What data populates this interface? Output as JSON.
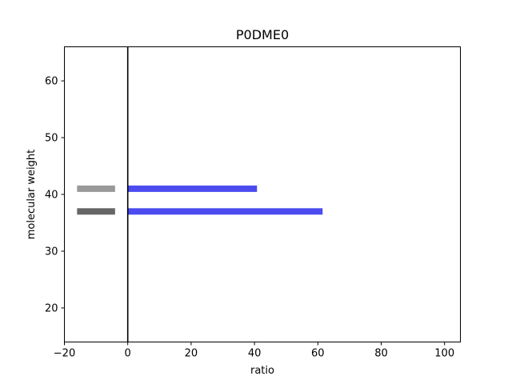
{
  "chart_data": {
    "type": "bar",
    "orientation": "horizontal",
    "title": "P0DME0",
    "xlabel": "ratio",
    "ylabel": "molecular weight",
    "xlim": [
      -20,
      105
    ],
    "ylim": [
      14,
      66
    ],
    "xticks": [
      -20,
      0,
      20,
      40,
      60,
      80,
      100
    ],
    "yticks": [
      20,
      30,
      40,
      50,
      60
    ],
    "reference_line_x": 0,
    "reference_bars": [
      {
        "molecular_weight": 41,
        "x_start": -16,
        "x_end": -4,
        "color": "#999999"
      },
      {
        "molecular_weight": 37,
        "x_start": -16,
        "x_end": -4,
        "color": "#666666"
      }
    ],
    "series": [
      {
        "color": "#4b4bf0",
        "points": [
          {
            "molecular_weight": 41,
            "ratio": 40.8
          },
          {
            "molecular_weight": 37,
            "ratio": 61.5
          }
        ]
      }
    ],
    "grid": false
  }
}
